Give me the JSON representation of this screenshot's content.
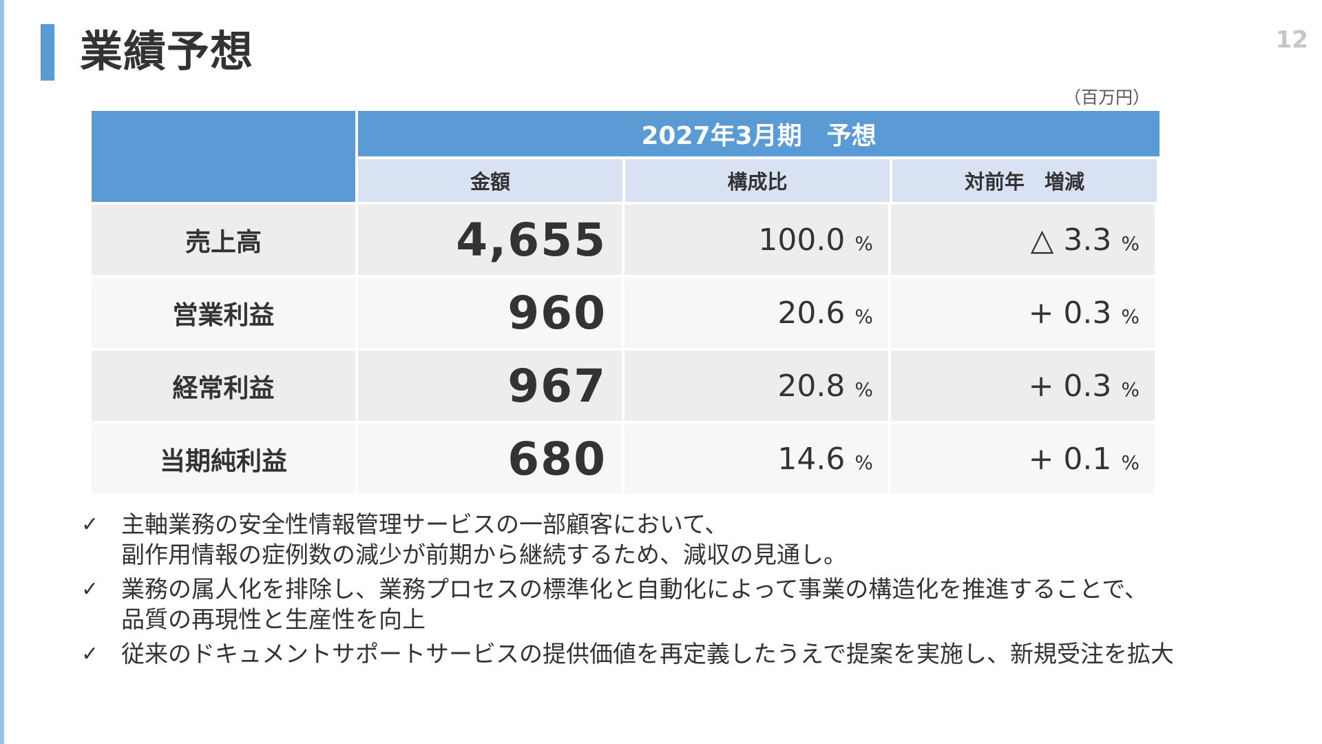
{
  "slide": {
    "title": "業績予想",
    "page_number": "12",
    "unit": "（百万円）"
  },
  "table": {
    "period_header": "2027年3月期　予想",
    "columns": [
      "金額",
      "構成比",
      "対前年　増減"
    ],
    "percent_symbol": "%",
    "rows": [
      {
        "label": "売上高",
        "amount": "4,655",
        "composition": "100.0",
        "yoy": "△ 3.3"
      },
      {
        "label": "営業利益",
        "amount": "960",
        "composition": "20.6",
        "yoy": "+ 0.3"
      },
      {
        "label": "経常利益",
        "amount": "967",
        "composition": "20.8",
        "yoy": "+ 0.3"
      },
      {
        "label": "当期純利益",
        "amount": "680",
        "composition": "14.6",
        "yoy": "+ 0.1"
      }
    ]
  },
  "bullets": {
    "mark": "✓",
    "items": [
      "主軸業務の安全性情報管理サービスの一部顧客において、\n副作用情報の症例数の減少が前期から継続するため、減収の見通し。",
      "業務の属人化を排除し、業務プロセスの標準化と自動化によって事業の構造化を推進することで、\n品質の再現性と生産性を向上",
      "従来のドキュメントサポートサービスの提供価値を再定義したうえで提案を実施し、新規受注を拡大"
    ]
  },
  "colors": {
    "accent": "#5b9bd5",
    "subheader": "#d9e2f3",
    "row_shade_a": "#ededed",
    "row_shade_b": "#f7f7f7"
  }
}
